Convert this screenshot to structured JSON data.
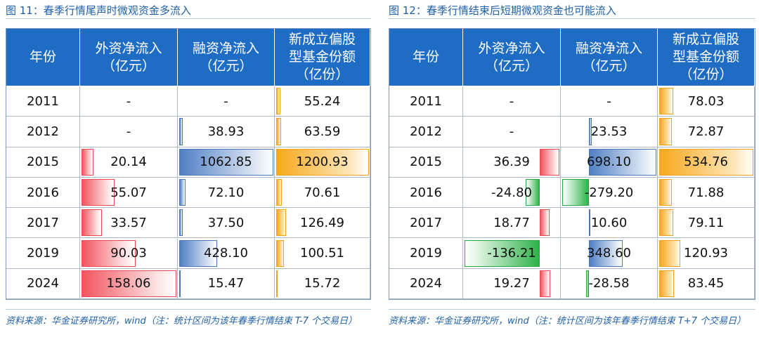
{
  "left": {
    "title": "图 11：春季行情尾声时微观资金多流入",
    "header": [
      [
        "年份"
      ],
      [
        "外资净流入",
        "（亿元）"
      ],
      [
        "融资净流入",
        "（亿元）"
      ],
      [
        "新成立偏股",
        "型基金份额",
        "（亿份）"
      ]
    ],
    "rows": [
      [
        "2011",
        "-",
        "-",
        "55.24"
      ],
      [
        "2012",
        "-",
        "38.93",
        "63.59"
      ],
      [
        "2015",
        "20.14",
        "1062.85",
        "1200.93"
      ],
      [
        "2016",
        "55.07",
        "72.10",
        "70.61"
      ],
      [
        "2017",
        "33.57",
        "37.50",
        "126.49"
      ],
      [
        "2019",
        "90.03",
        "428.10",
        "100.51"
      ],
      [
        "2024",
        "158.06",
        "15.47",
        "15.72"
      ]
    ],
    "source": "资料来源：华金证券研究所，wind（注：统计区间为该年春季行情结束 T-7 个交易日）"
  },
  "right": {
    "title": "图 12：春季行情结束后短期微观资金也可能流入",
    "header": [
      [
        "年份"
      ],
      [
        "外资净流入",
        "（亿元）"
      ],
      [
        "融资净流入",
        "（亿元）"
      ],
      [
        "新成立偏股",
        "型基金份额",
        "（亿份）"
      ]
    ],
    "rows": [
      [
        "2011",
        "-",
        "-",
        "78.03"
      ],
      [
        "2012",
        "-",
        "23.53",
        "72.87"
      ],
      [
        "2015",
        "36.39",
        "698.10",
        "534.76"
      ],
      [
        "2016",
        "-24.80",
        "-279.20",
        "71.88"
      ],
      [
        "2017",
        "18.77",
        "10.60",
        "79.11"
      ],
      [
        "2019",
        "-136.21",
        "348.60",
        "120.93"
      ],
      [
        "2024",
        "19.27",
        "-28.58",
        "83.45"
      ]
    ],
    "source": "资料来源：华金证券研究所，wind（注：统计区间为该年春季行情结束 T+7 个交易日）"
  }
}
